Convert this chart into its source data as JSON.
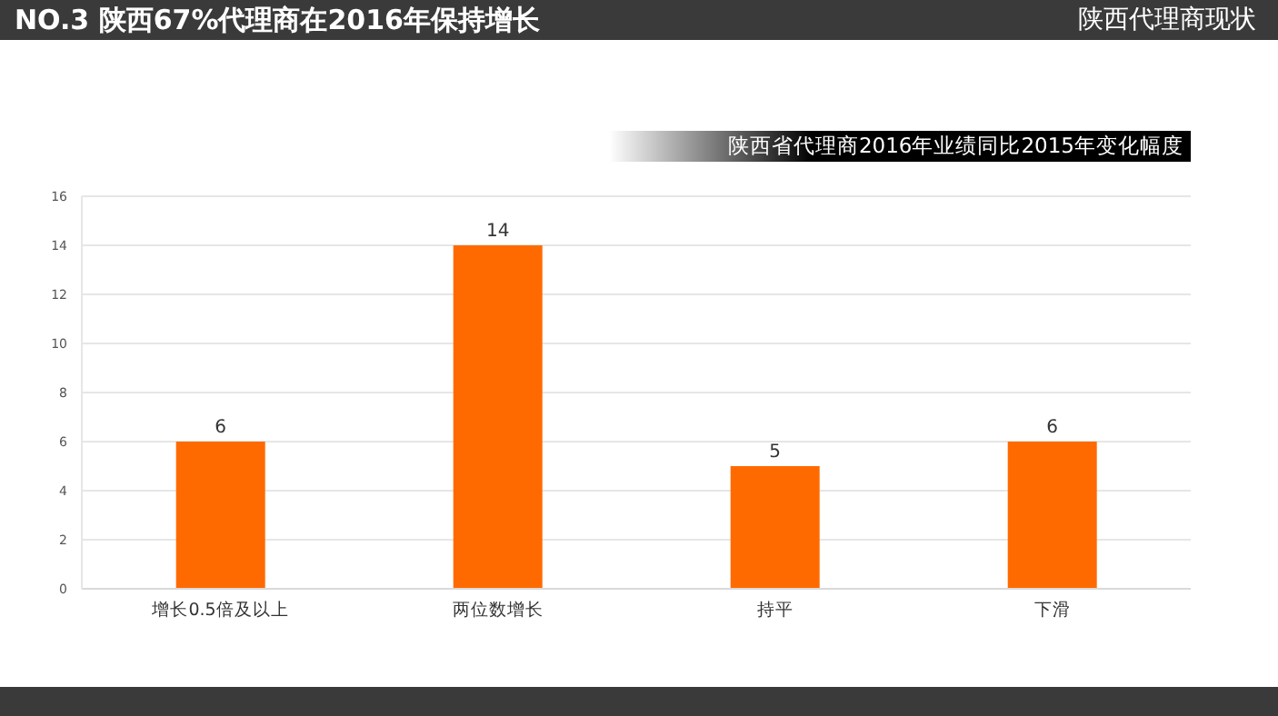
{
  "chart_data": {
    "type": "bar",
    "title": "NO.3 陕西67%代理商在2016年保持增长",
    "subtitle": "陕西省代理商2016年业绩同比2015年变化幅度",
    "annotations": [
      "陕西代理商现状"
    ],
    "categories": [
      "增长0.5倍及以上",
      "两位数增长",
      "持平",
      "下滑"
    ],
    "values": [
      6,
      14,
      5,
      6
    ],
    "color": "#ff6a00",
    "ylim": [
      0,
      16
    ],
    "yticks": [
      0,
      2,
      4,
      6,
      8,
      10,
      12,
      14,
      16
    ],
    "grid": "y",
    "data_labels": true
  }
}
